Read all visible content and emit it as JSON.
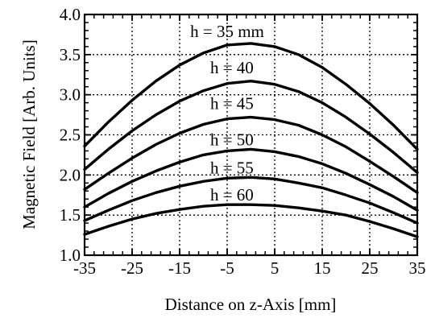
{
  "chart_data": {
    "type": "line",
    "title": "",
    "xlabel": "Distance on z-Axis [mm]",
    "ylabel": "Magnetic Field [Arb. Units]",
    "xlim": [
      -35,
      35
    ],
    "ylim": [
      1.0,
      4.0
    ],
    "xticks": [
      -35,
      -25,
      -15,
      -5,
      5,
      15,
      25,
      35
    ],
    "xtick_labels": [
      "-35",
      "-25",
      "-15",
      "-5",
      "5",
      "15",
      "25",
      "35"
    ],
    "yticks": [
      1.0,
      1.5,
      2.0,
      2.5,
      3.0,
      3.5,
      4.0
    ],
    "ytick_labels": [
      "1.0",
      "1.5",
      "2.0",
      "2.5",
      "3.0",
      "3.5",
      "4.0"
    ],
    "grid": true,
    "legend": "none",
    "x": [
      -35,
      -30,
      -25,
      -20,
      -15,
      -10,
      -5,
      0,
      5,
      10,
      15,
      20,
      25,
      30,
      35
    ],
    "series": [
      {
        "name": "h = 35 mm",
        "label_at": [
          -5,
          3.72
        ],
        "values": [
          2.36,
          2.66,
          2.93,
          3.17,
          3.37,
          3.52,
          3.62,
          3.64,
          3.6,
          3.5,
          3.34,
          3.13,
          2.89,
          2.62,
          2.32
        ]
      },
      {
        "name": "h = 40",
        "label_at": [
          -4,
          3.27
        ],
        "values": [
          2.07,
          2.32,
          2.55,
          2.75,
          2.92,
          3.05,
          3.14,
          3.17,
          3.13,
          3.04,
          2.9,
          2.72,
          2.51,
          2.28,
          2.03
        ]
      },
      {
        "name": "h = 45",
        "label_at": [
          -4,
          2.82
        ],
        "values": [
          1.82,
          2.02,
          2.21,
          2.38,
          2.52,
          2.63,
          2.7,
          2.72,
          2.69,
          2.62,
          2.5,
          2.35,
          2.17,
          1.98,
          1.78
        ]
      },
      {
        "name": "h = 50",
        "label_at": [
          -4,
          2.37
        ],
        "values": [
          1.6,
          1.77,
          1.92,
          2.05,
          2.16,
          2.25,
          2.3,
          2.32,
          2.29,
          2.23,
          2.14,
          2.02,
          1.88,
          1.73,
          1.56
        ]
      },
      {
        "name": "h = 55",
        "label_at": [
          -4,
          2.02
        ],
        "values": [
          1.43,
          1.56,
          1.68,
          1.78,
          1.86,
          1.92,
          1.96,
          1.97,
          1.95,
          1.9,
          1.84,
          1.75,
          1.65,
          1.53,
          1.4
        ]
      },
      {
        "name": "h = 60",
        "label_at": [
          -4,
          1.68
        ],
        "values": [
          1.26,
          1.36,
          1.45,
          1.52,
          1.57,
          1.61,
          1.63,
          1.63,
          1.62,
          1.59,
          1.55,
          1.5,
          1.42,
          1.33,
          1.23
        ]
      }
    ]
  }
}
